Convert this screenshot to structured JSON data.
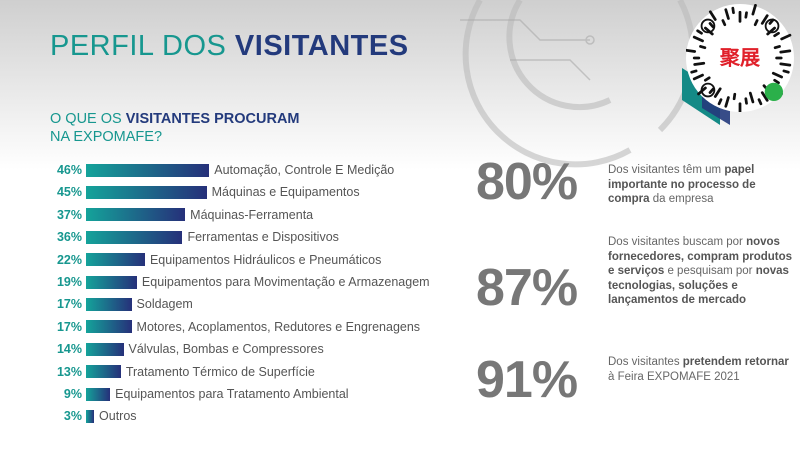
{
  "header": {
    "title_light": "PERFIL DOS ",
    "title_bold": "VISITANTES"
  },
  "subtitle": {
    "pre": "O QUE OS ",
    "bold": "VISITANTES PROCURAM",
    "line2": "NA EXPOMAFE?"
  },
  "chart_data": {
    "type": "bar",
    "title": "O QUE OS VISITANTES PROCURAM NA EXPOMAFE?",
    "unit": "%",
    "categories": [
      "Automação, Controle E Medição",
      "Máquinas e Equipamentos",
      "Máquinas-Ferramenta",
      "Ferramentas e Dispositivos",
      "Equipamentos Hidráulicos e Pneumáticos",
      "Equipamentos para Movimentação e Armazenagem",
      "Soldagem",
      "Motores, Acoplamentos, Redutores e Engrenagens",
      "Válvulas, Bombas e Compressores",
      "Tratamento Térmico de Superfície",
      "Equipamentos para Tratamento Ambiental",
      "Outros"
    ],
    "values": [
      46,
      45,
      37,
      36,
      22,
      19,
      17,
      17,
      14,
      13,
      9,
      3
    ],
    "labels": [
      "46%",
      "45%",
      "37%",
      "36%",
      "22%",
      "19%",
      "17%",
      "17%",
      "14%",
      "13%",
      "9%",
      "3%"
    ]
  },
  "stats": [
    {
      "value": "80%",
      "parts": [
        [
          "Dos visitantes têm um ",
          false
        ],
        [
          "papel importante no processo de compra",
          true
        ],
        [
          " da empresa",
          false
        ]
      ]
    },
    {
      "value": "87%",
      "parts": [
        [
          "Dos visitantes buscam por ",
          false
        ],
        [
          "novos fornecedores, compram produtos e serviços",
          true
        ],
        [
          " e pesquisam por ",
          false
        ],
        [
          "novas tecnologias, soluções e lançamentos de mercado",
          true
        ]
      ]
    },
    {
      "value": "91%",
      "parts": [
        [
          "Dos visitantes ",
          false
        ],
        [
          "pretendem retornar",
          true
        ],
        [
          " à Feira EXPOMAFE 2021",
          false
        ]
      ]
    }
  ],
  "watermark": {
    "text": "聚展"
  },
  "colors": {
    "teal": "#17978f",
    "navy": "#233a7c"
  }
}
